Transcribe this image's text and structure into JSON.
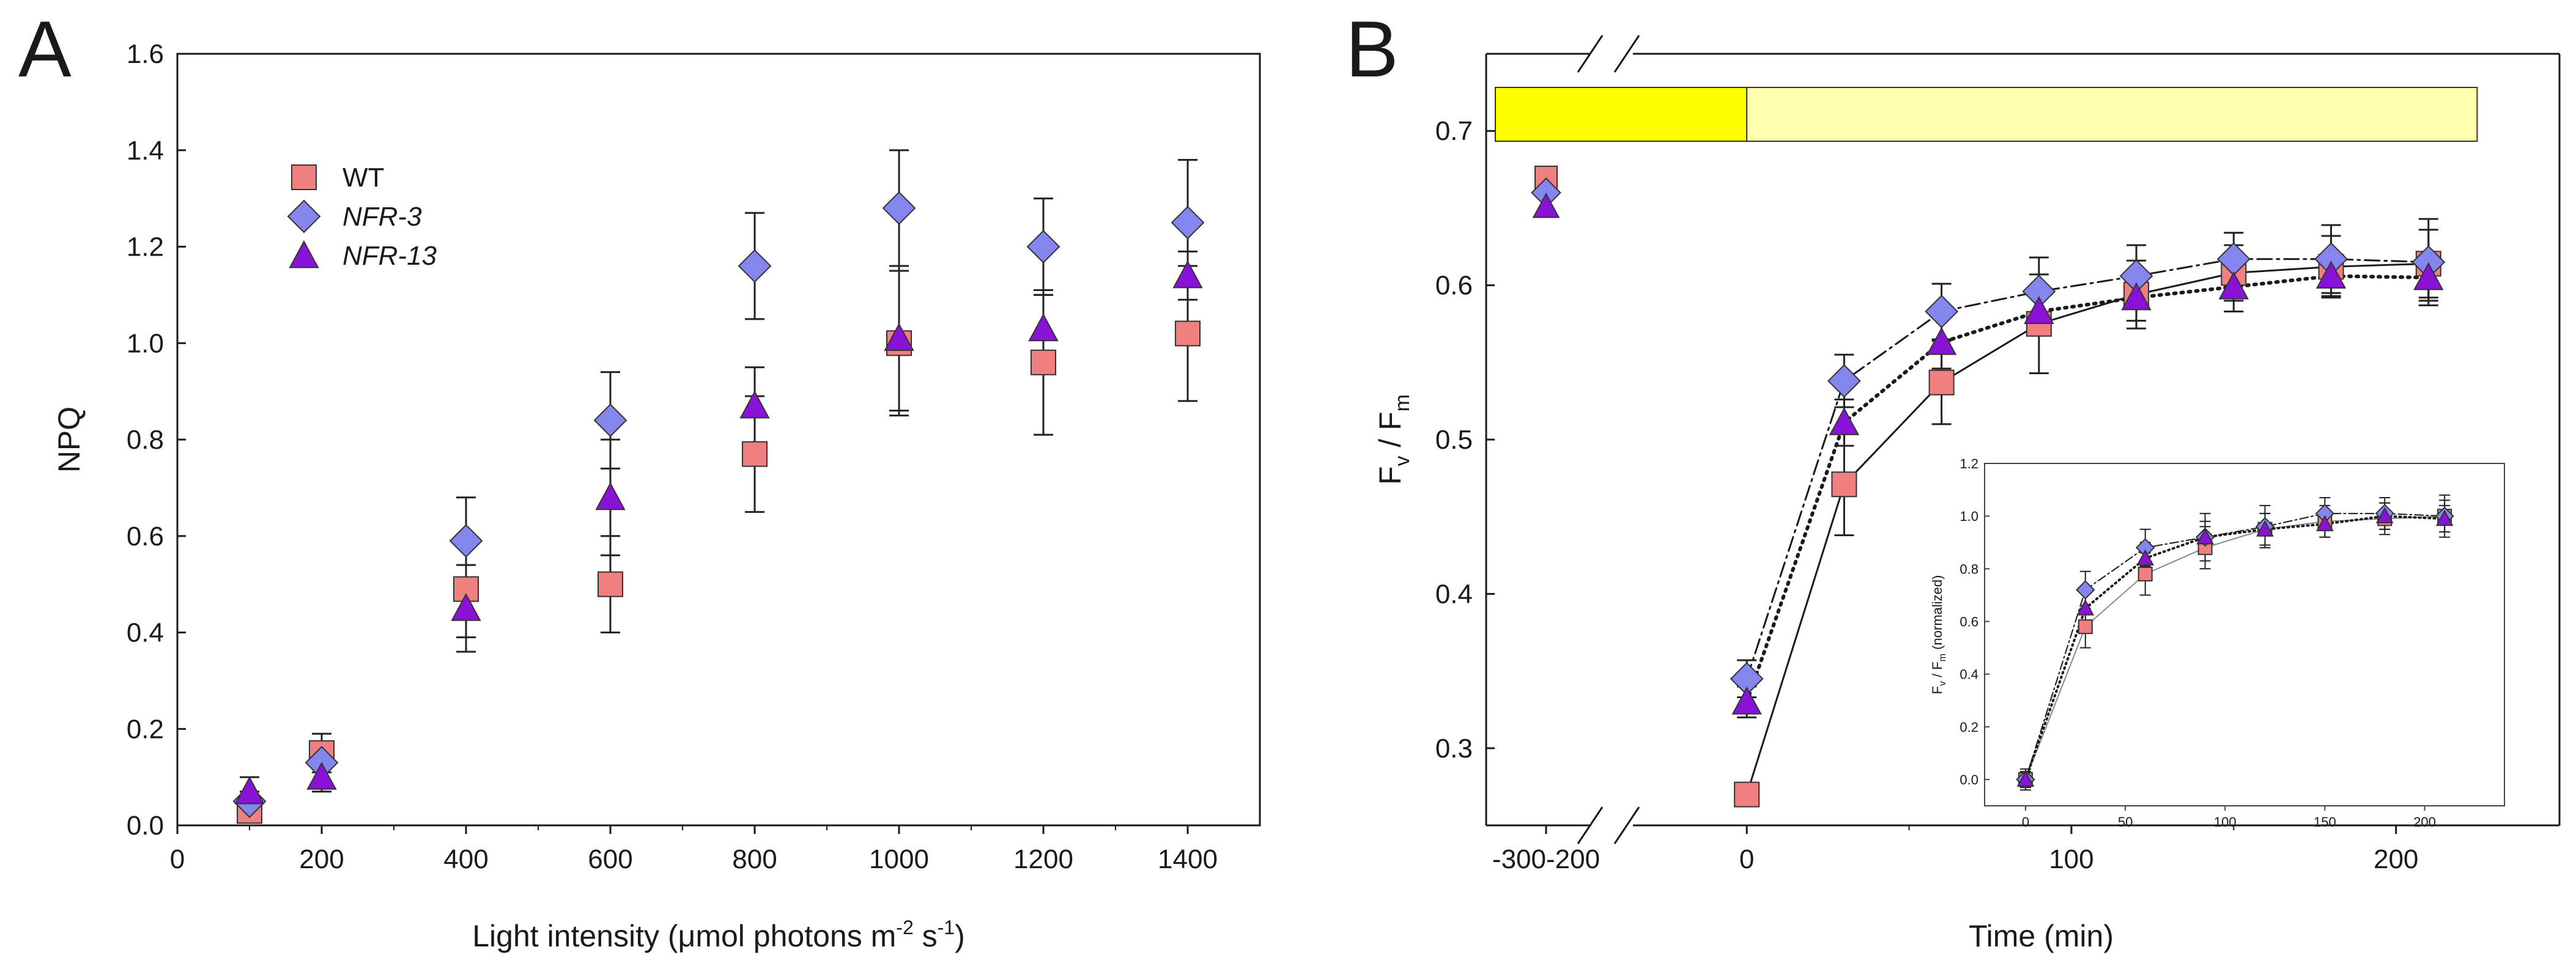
{
  "panel_a_letter": "A",
  "panel_b_letter": "B",
  "inset_ylabel_parts": [
    "F",
    "v",
    " / F",
    "m",
    "  (normalized)"
  ],
  "colors": {
    "wt": "#f08080",
    "nfr3": "#8585ee",
    "nfr13": "#8a12d6",
    "bar_dark": "#ffff00",
    "bar_light": "#ffffb0",
    "axis": "#1a1a1a"
  },
  "chart_data": [
    {
      "id": "A",
      "type": "scatter",
      "title": "",
      "xlabel_parts": [
        "Light intensity (",
        "μ",
        "mol photons m",
        "-2",
        " s",
        "-1",
        ")"
      ],
      "ylabel": "NPQ",
      "xlim": [
        0,
        1500
      ],
      "ylim": [
        0,
        1.6
      ],
      "xticks": [
        0,
        200,
        400,
        600,
        800,
        1000,
        1200,
        1400
      ],
      "yticks": [
        0.0,
        0.2,
        0.4,
        0.6,
        0.8,
        1.0,
        1.2,
        1.4,
        1.6
      ],
      "ytick_labels": [
        "0.0",
        "0.2",
        "0.4",
        "0.6",
        "0.8",
        "1.0",
        "1.2",
        "1.4",
        "1.6"
      ],
      "legend": {
        "position": "top-left",
        "entries": [
          "WT",
          "NFR-3",
          "NFR-13"
        ]
      },
      "series": [
        {
          "name": "WT",
          "marker": "square",
          "color_key": "wt",
          "x": [
            100,
            200,
            400,
            600,
            800,
            1000,
            1200,
            1400
          ],
          "y": [
            0.03,
            0.15,
            0.49,
            0.5,
            0.77,
            1.0,
            0.96,
            1.02
          ],
          "err": [
            0.02,
            0.04,
            0.1,
            0.1,
            0.12,
            0.15,
            0.15,
            0.14
          ]
        },
        {
          "name": "NFR-3",
          "marker": "diamond",
          "color_key": "nfr3",
          "x": [
            100,
            200,
            400,
            600,
            800,
            1000,
            1200,
            1400
          ],
          "y": [
            0.05,
            0.13,
            0.59,
            0.84,
            1.16,
            1.28,
            1.2,
            1.25
          ],
          "err": [
            0.02,
            0.04,
            0.09,
            0.1,
            0.11,
            0.12,
            0.1,
            0.13
          ]
        },
        {
          "name": "NFR-13",
          "marker": "triangle",
          "color_key": "nfr13",
          "x": [
            100,
            200,
            400,
            600,
            800,
            1000,
            1200,
            1400
          ],
          "y": [
            0.07,
            0.1,
            0.45,
            0.68,
            0.87,
            1.01,
            1.03,
            1.14
          ],
          "err": [
            0.03,
            0.03,
            0.09,
            0.12,
            0.08,
            0.15,
            0.07,
            0.05
          ]
        }
      ]
    },
    {
      "id": "B",
      "type": "line",
      "title": "",
      "xlabel": "Time (min)",
      "ylabel_parts": [
        "F",
        "v",
        " / F",
        "m"
      ],
      "ylim": [
        0.25,
        0.75
      ],
      "yticks": [
        0.3,
        0.4,
        0.5,
        0.6,
        0.7
      ],
      "ytick_labels": [
        "0.3",
        "0.4",
        "0.5",
        "0.6",
        "0.7"
      ],
      "xaxis_break": true,
      "xtick_pre_break_label": "-300-200",
      "xticks": [
        0,
        100,
        200
      ],
      "xtick_labels": [
        "0",
        "100",
        "200"
      ],
      "xlim_after_break": [
        -20,
        240
      ],
      "pre_break_x_value": -200,
      "light_bar": {
        "dark_segment": "pre-break",
        "light_segment": [
          0,
          225
        ]
      },
      "series": [
        {
          "name": "WT",
          "marker": "square",
          "color_key": "wt",
          "line": "solid",
          "x": [
            0,
            30,
            60,
            90,
            120,
            150,
            180,
            210
          ],
          "y": [
            0.27,
            0.471,
            0.537,
            0.575,
            0.594,
            0.608,
            0.612,
            0.614
          ],
          "err": [
            0.0,
            0.033,
            0.027,
            0.032,
            0.022,
            0.018,
            0.02,
            0.022
          ],
          "pre_y": 0.67,
          "pre_err": 0.0
        },
        {
          "name": "NFR-3",
          "marker": "diamond",
          "color_key": "nfr3",
          "line": "dashdot",
          "x": [
            0,
            30,
            60,
            90,
            120,
            150,
            180,
            210
          ],
          "y": [
            0.345,
            0.538,
            0.583,
            0.596,
            0.606,
            0.617,
            0.617,
            0.615
          ],
          "err": [
            0.012,
            0.017,
            0.018,
            0.022,
            0.02,
            0.017,
            0.022,
            0.028
          ],
          "pre_y": 0.66,
          "pre_err": 0.0
        },
        {
          "name": "NFR-13",
          "marker": "triangle",
          "color_key": "nfr13",
          "line": "dotted",
          "x": [
            0,
            30,
            60,
            90,
            120,
            150,
            180,
            210
          ],
          "y": [
            0.33,
            0.511,
            0.563,
            0.583,
            0.592,
            0.599,
            0.606,
            0.605
          ],
          "err": [
            0.01,
            0.015,
            0.017,
            0.015,
            0.015,
            0.016,
            0.013,
            0.015
          ],
          "pre_y": 0.651,
          "pre_err": 0.0
        }
      ]
    },
    {
      "id": "B-inset",
      "type": "line",
      "title": "",
      "xlabel": "",
      "xlim": [
        -15,
        240
      ],
      "ylim": [
        -0.1,
        1.2
      ],
      "xticks": [
        0,
        50,
        100,
        150,
        200
      ],
      "xtick_labels": [
        "0",
        "50",
        "100",
        "150",
        "200"
      ],
      "yticks": [
        0.0,
        0.2,
        0.4,
        0.6,
        0.8,
        1.0,
        1.2
      ],
      "ytick_labels": [
        "0.0",
        "0.2",
        "0.4",
        "0.6",
        "0.8",
        "1.0",
        "1.2"
      ],
      "series": [
        {
          "name": "WT",
          "marker": "square",
          "color_key": "wt",
          "line": "solid",
          "x": [
            0,
            30,
            60,
            90,
            120,
            150,
            180,
            210
          ],
          "y": [
            0.0,
            0.58,
            0.78,
            0.88,
            0.95,
            0.98,
            0.99,
            1.0
          ],
          "err": [
            0.03,
            0.08,
            0.08,
            0.08,
            0.06,
            0.06,
            0.06,
            0.06
          ]
        },
        {
          "name": "NFR-3",
          "marker": "diamond",
          "color_key": "nfr3",
          "line": "dashdot",
          "x": [
            0,
            30,
            60,
            90,
            120,
            150,
            180,
            210
          ],
          "y": [
            0.0,
            0.72,
            0.88,
            0.92,
            0.96,
            1.01,
            1.01,
            1.0
          ],
          "err": [
            0.04,
            0.07,
            0.07,
            0.09,
            0.08,
            0.06,
            0.06,
            0.08
          ]
        },
        {
          "name": "NFR-13",
          "marker": "triangle",
          "color_key": "nfr13",
          "line": "dotted",
          "x": [
            0,
            30,
            60,
            90,
            120,
            150,
            180,
            210
          ],
          "y": [
            0.0,
            0.65,
            0.84,
            0.92,
            0.95,
            0.97,
            1.0,
            0.99
          ],
          "err": [
            0.03,
            0.06,
            0.06,
            0.06,
            0.06,
            0.05,
            0.05,
            0.05
          ]
        }
      ]
    }
  ]
}
